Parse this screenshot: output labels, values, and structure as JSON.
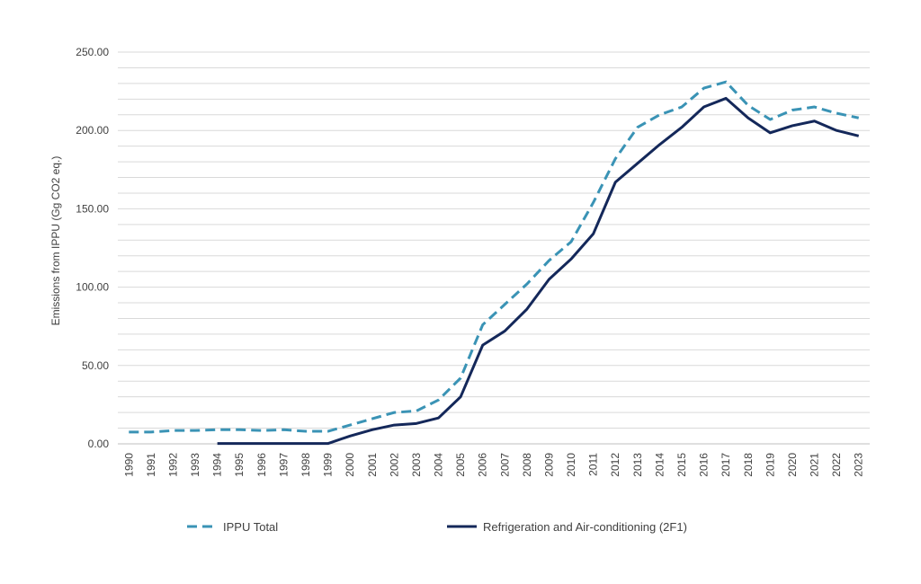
{
  "chart_data": {
    "type": "line",
    "title": "",
    "xlabel": "",
    "ylabel": "Emissions from IPPU (Gg CO2 eq.)",
    "ylim": [
      0,
      250
    ],
    "y_ticks": [
      "0.00",
      "50.00",
      "100.00",
      "150.00",
      "200.00",
      "250.00"
    ],
    "grid": true,
    "legend_position": "bottom",
    "x": [
      "1990",
      "1991",
      "1992",
      "1993",
      "1994",
      "1995",
      "1996",
      "1997",
      "1998",
      "1999",
      "2000",
      "2001",
      "2002",
      "2003",
      "2004",
      "2005",
      "2006",
      "2007",
      "2008",
      "2009",
      "2010",
      "2011",
      "2012",
      "2013",
      "2014",
      "2015",
      "2016",
      "2017",
      "2018",
      "2019",
      "2020",
      "2021",
      "2022",
      "2023"
    ],
    "series": [
      {
        "name": "IPPU Total",
        "style": "dashed",
        "color": "#3a93b5",
        "values": [
          7.5,
          7.5,
          8.5,
          8.5,
          9,
          9,
          8.5,
          9,
          8,
          8,
          12,
          16,
          20,
          21,
          28,
          42,
          76,
          89,
          102,
          117,
          129,
          154,
          182,
          202,
          210,
          215,
          227,
          231,
          216,
          207,
          213,
          215,
          211,
          208
        ]
      },
      {
        "name": "Refrigeration and Air-conditioning (2F1)",
        "style": "solid",
        "color": "#14285a",
        "values": [
          null,
          null,
          null,
          null,
          0.2,
          0.2,
          0.2,
          0.2,
          0.2,
          0.2,
          5,
          9,
          12,
          13,
          16.5,
          30,
          63,
          72,
          86,
          105,
          118,
          134,
          167,
          179,
          191,
          202,
          215,
          220.5,
          208,
          198.5,
          203,
          206,
          200,
          196.5
        ]
      }
    ]
  }
}
